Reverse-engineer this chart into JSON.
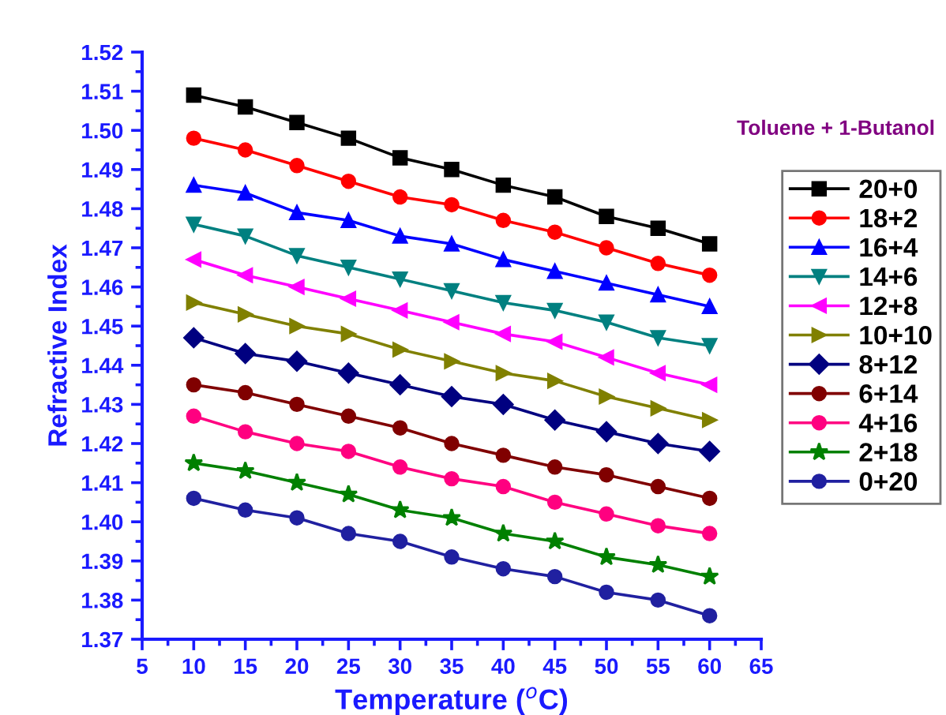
{
  "chart_data": {
    "type": "line",
    "xlabel": "Temperature ($^{o}$C)",
    "ylabel": "Refractive Index",
    "annotations": [
      "Toluene + 1-Butanol"
    ],
    "x": [
      10,
      15,
      20,
      25,
      30,
      35,
      40,
      45,
      50,
      55,
      60
    ],
    "xlim": [
      5,
      65
    ],
    "xticks": [
      5,
      10,
      15,
      20,
      25,
      30,
      35,
      40,
      45,
      50,
      55,
      60,
      65
    ],
    "ylim": [
      1.37,
      1.52
    ],
    "yticks": [
      {
        "value": 1.37,
        "label": "1.37"
      },
      {
        "value": 1.38,
        "label": "1.38"
      },
      {
        "value": 1.39,
        "label": "1.39"
      },
      {
        "value": 1.4,
        "label": "1.40"
      },
      {
        "value": 1.41,
        "label": "1.41"
      },
      {
        "value": 1.42,
        "label": "1.42"
      },
      {
        "value": 1.43,
        "label": "1.43"
      },
      {
        "value": 1.44,
        "label": "1.44"
      },
      {
        "value": 1.45,
        "label": "1.45"
      },
      {
        "value": 1.46,
        "label": "1.46"
      },
      {
        "value": 1.47,
        "label": "1.47"
      },
      {
        "value": 1.48,
        "label": "1.48"
      },
      {
        "value": 1.49,
        "label": "1.49"
      },
      {
        "value": 1.5,
        "label": "1.50"
      },
      {
        "value": 1.51,
        "label": "1.51"
      },
      {
        "value": 1.52,
        "label": "1.52"
      }
    ],
    "grid": false,
    "legend": "right",
    "line_style": "solid",
    "series": [
      {
        "name": "20+0",
        "color": "#000000",
        "marker": "square",
        "values": [
          1.509,
          1.506,
          1.502,
          1.498,
          1.493,
          1.49,
          1.486,
          1.483,
          1.478,
          1.475,
          1.471
        ]
      },
      {
        "name": "18+2",
        "color": "#ff0000",
        "marker": "circle",
        "values": [
          1.498,
          1.495,
          1.491,
          1.487,
          1.483,
          1.481,
          1.477,
          1.474,
          1.47,
          1.466,
          1.463
        ]
      },
      {
        "name": "16+4",
        "color": "#0000ff",
        "marker": "triangle",
        "values": [
          1.486,
          1.484,
          1.479,
          1.477,
          1.473,
          1.471,
          1.467,
          1.464,
          1.461,
          1.458,
          1.455
        ]
      },
      {
        "name": "14+6",
        "color": "#008080",
        "marker": "triangle-down",
        "values": [
          1.476,
          1.473,
          1.468,
          1.465,
          1.462,
          1.459,
          1.456,
          1.454,
          1.451,
          1.447,
          1.445
        ]
      },
      {
        "name": "12+8",
        "color": "#ff00ff",
        "marker": "triangle-left",
        "values": [
          1.467,
          1.463,
          1.46,
          1.457,
          1.454,
          1.451,
          1.448,
          1.446,
          1.442,
          1.438,
          1.435
        ]
      },
      {
        "name": "10+10",
        "color": "#808000",
        "marker": "triangle-right",
        "values": [
          1.456,
          1.453,
          1.45,
          1.448,
          1.444,
          1.441,
          1.438,
          1.436,
          1.432,
          1.429,
          1.426
        ]
      },
      {
        "name": "8+12",
        "color": "#000080",
        "marker": "diamond",
        "values": [
          1.447,
          1.443,
          1.441,
          1.438,
          1.435,
          1.432,
          1.43,
          1.426,
          1.423,
          1.42,
          1.418
        ]
      },
      {
        "name": "6+14",
        "color": "#800000",
        "marker": "circle",
        "values": [
          1.435,
          1.433,
          1.43,
          1.427,
          1.424,
          1.42,
          1.417,
          1.414,
          1.412,
          1.409,
          1.406
        ]
      },
      {
        "name": "4+16",
        "color": "#ff0080",
        "marker": "circle",
        "values": [
          1.427,
          1.423,
          1.42,
          1.418,
          1.414,
          1.411,
          1.409,
          1.405,
          1.402,
          1.399,
          1.397
        ]
      },
      {
        "name": "2+18",
        "color": "#008000",
        "marker": "star",
        "values": [
          1.415,
          1.413,
          1.41,
          1.407,
          1.403,
          1.401,
          1.397,
          1.395,
          1.391,
          1.389,
          1.386
        ]
      },
      {
        "name": "0+20",
        "color": "#2020a0",
        "marker": "circle",
        "values": [
          1.406,
          1.403,
          1.401,
          1.397,
          1.395,
          1.391,
          1.388,
          1.386,
          1.382,
          1.38,
          1.376
        ]
      }
    ]
  }
}
